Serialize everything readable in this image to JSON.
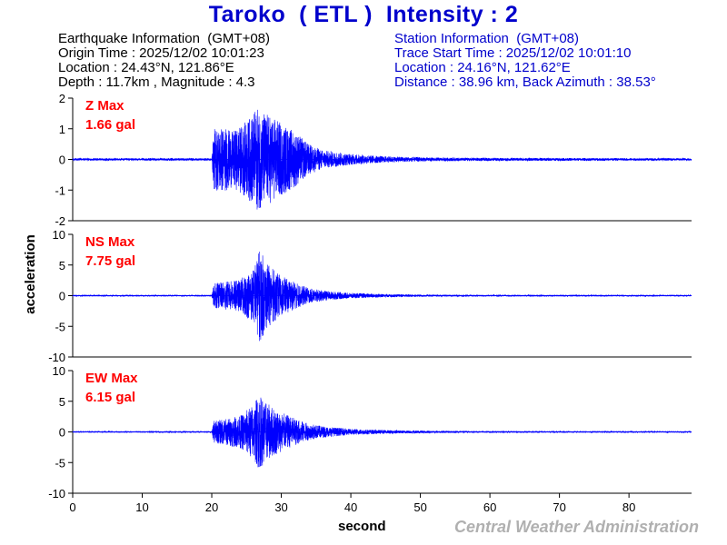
{
  "title": "Taroko  ( ETL )  Intensity : 2",
  "earthquake": {
    "heading": "Earthquake Information  (GMT+08)",
    "origin_time": "Origin Time : 2025/12/02 10:01:23",
    "location": "Location : 24.43°N, 121.86°E",
    "depth_magnitude": "Depth : 11.7km , Magnitude : 4.3"
  },
  "station": {
    "heading": "Station Information  (GMT+08)",
    "trace_start": "Trace Start Time : 2025/12/02 10:01:10",
    "location": "Location : 24.16°N, 121.62°E",
    "distance": "Distance : 38.96 km, Back Azimuth : 38.53°"
  },
  "credit": "Central Weather Administration",
  "colors": {
    "title": "#0000cc",
    "trace": "#0000ff",
    "label": "#ff0000",
    "credit": "#b0b0b0"
  },
  "chart_data": {
    "type": "line",
    "xlabel": "second",
    "ylabel": "acceleration",
    "xlim": [
      0,
      89
    ],
    "xticks": [
      0,
      10,
      20,
      30,
      40,
      50,
      60,
      70,
      80
    ],
    "grid": false,
    "p_arrival": 20.1,
    "panels": [
      {
        "name": "Z Max",
        "component": "Z",
        "max_label": "1.66 gal",
        "max": 1.66,
        "ylim": [
          -2,
          2
        ],
        "yticks": [
          -2,
          -1,
          0,
          1,
          2
        ],
        "noise": 0.025,
        "envelope": [
          [
            0,
            0.04
          ],
          [
            20,
            0.04
          ],
          [
            20.3,
            1.0
          ],
          [
            21.5,
            1.1
          ],
          [
            23,
            0.9
          ],
          [
            25,
            1.25
          ],
          [
            26.5,
            1.66
          ],
          [
            28,
            1.5
          ],
          [
            30,
            1.2
          ],
          [
            32,
            0.9
          ],
          [
            34,
            0.5
          ],
          [
            36,
            0.3
          ],
          [
            40,
            0.18
          ],
          [
            45,
            0.1
          ],
          [
            52,
            0.06
          ],
          [
            60,
            0.05
          ],
          [
            89,
            0.04
          ]
        ]
      },
      {
        "name": "NS Max",
        "component": "NS",
        "max_label": "7.75 gal",
        "max": 7.75,
        "ylim": [
          -10,
          10
        ],
        "yticks": [
          -10,
          -5,
          0,
          5,
          10
        ],
        "noise": 0.06,
        "envelope": [
          [
            0,
            0.1
          ],
          [
            20,
            0.1
          ],
          [
            20.3,
            2.0
          ],
          [
            22,
            2.3
          ],
          [
            24,
            2.6
          ],
          [
            26,
            4.5
          ],
          [
            26.9,
            7.75
          ],
          [
            28,
            5.2
          ],
          [
            30,
            3.2
          ],
          [
            32,
            2.2
          ],
          [
            34,
            1.2
          ],
          [
            37,
            0.7
          ],
          [
            40,
            0.45
          ],
          [
            45,
            0.25
          ],
          [
            52,
            0.15
          ],
          [
            60,
            0.12
          ],
          [
            89,
            0.1
          ]
        ]
      },
      {
        "name": "EW Max",
        "component": "EW",
        "max_label": "6.15 gal",
        "max": 6.15,
        "ylim": [
          -10,
          10
        ],
        "yticks": [
          -10,
          -5,
          0,
          5,
          10
        ],
        "noise": 0.06,
        "envelope": [
          [
            0,
            0.1
          ],
          [
            20,
            0.1
          ],
          [
            20.3,
            1.8
          ],
          [
            22,
            2.2
          ],
          [
            24,
            2.6
          ],
          [
            26,
            4.6
          ],
          [
            26.8,
            6.15
          ],
          [
            28,
            4.6
          ],
          [
            30,
            3.2
          ],
          [
            32,
            2.2
          ],
          [
            34,
            1.3
          ],
          [
            37,
            0.8
          ],
          [
            40,
            0.5
          ],
          [
            45,
            0.3
          ],
          [
            52,
            0.18
          ],
          [
            60,
            0.12
          ],
          [
            89,
            0.1
          ]
        ]
      }
    ]
  }
}
